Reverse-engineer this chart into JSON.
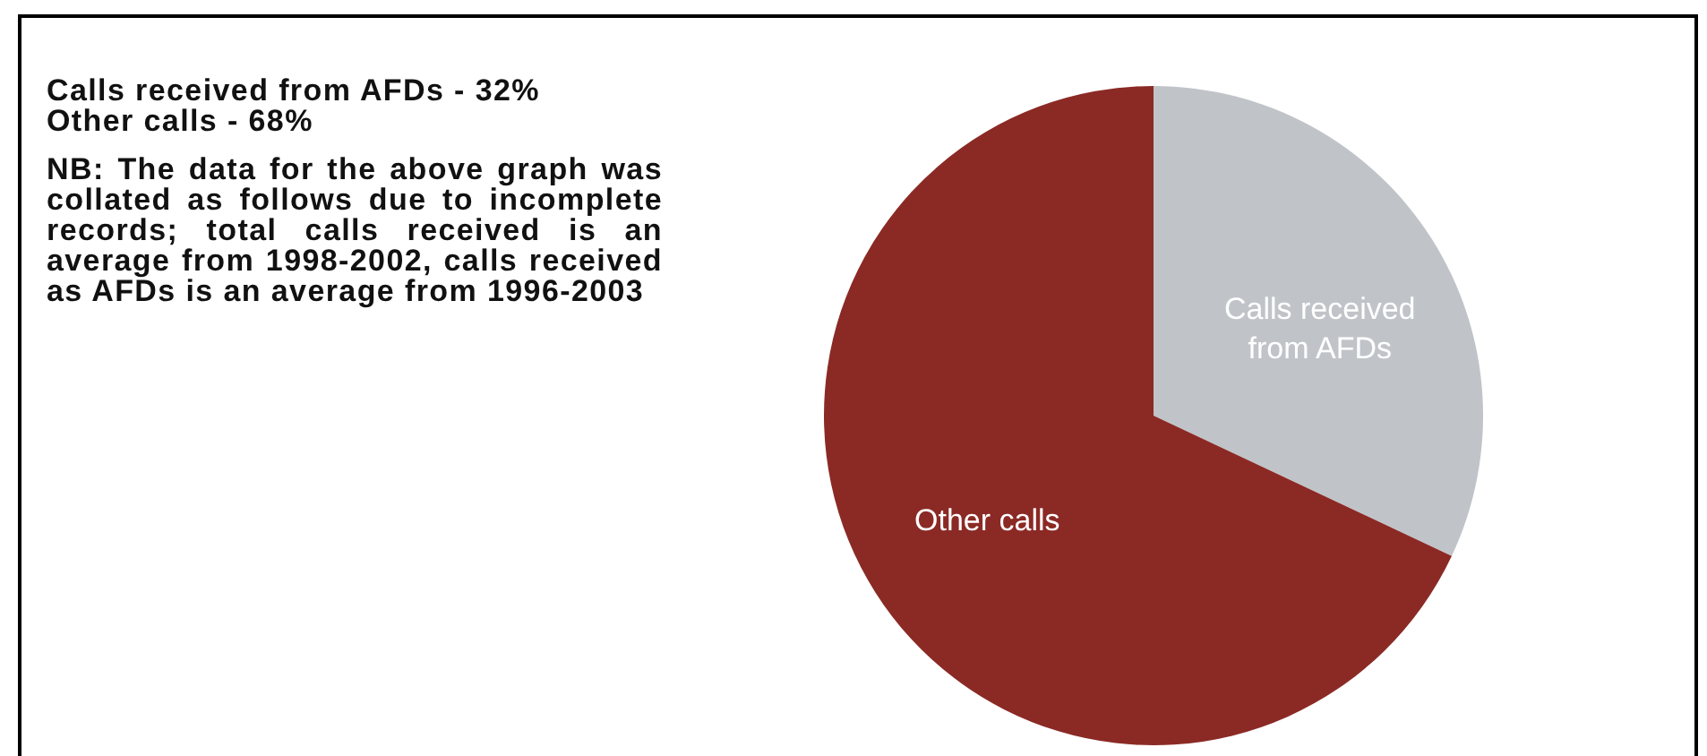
{
  "chart_data": {
    "type": "pie",
    "categories": [
      "Calls received from AFDs",
      "Other calls"
    ],
    "values": [
      32,
      68
    ],
    "colors": [
      "#c0c4c9",
      "#8b2a25"
    ],
    "annotations": [
      "Calls received from AFDs - 32%\nOther calls - 68%",
      "NB: The data for the above graph was collated as follows due to incomplete records; total calls received is an average from 1998-2002, calls received as AFDs is an average from 1996-2003"
    ]
  }
}
